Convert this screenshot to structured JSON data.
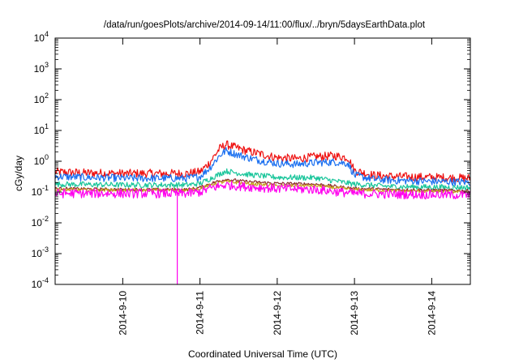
{
  "chart_data": {
    "type": "line",
    "title": "/data/run/goesPlots/archive/2014-09-14/11:00/flux/../bryn/5daysEarthData.plot",
    "xlabel": "Coordinated Universal Time (UTC)",
    "ylabel": "cGy/day",
    "y_scale": "log",
    "ylim": [
      0.0001,
      10000
    ],
    "y_ticks": [
      {
        "value": 0.0001,
        "base": "10",
        "exp": "-4"
      },
      {
        "value": 0.001,
        "base": "10",
        "exp": "-3"
      },
      {
        "value": 0.01,
        "base": "10",
        "exp": "-2"
      },
      {
        "value": 0.1,
        "base": "10",
        "exp": "-1"
      },
      {
        "value": 1,
        "base": "10",
        "exp": "0"
      },
      {
        "value": 10,
        "base": "10",
        "exp": "1"
      },
      {
        "value": 100,
        "base": "10",
        "exp": "2"
      },
      {
        "value": 1000,
        "base": "10",
        "exp": "3"
      },
      {
        "value": 10000,
        "base": "10",
        "exp": "4"
      }
    ],
    "xlim": [
      "2014-09-09 03:00",
      "2014-09-14 12:00"
    ],
    "x_ticks": [
      "2014-9-10",
      "2014-9-11",
      "2014-9-12",
      "2014-9-13",
      "2014-9-14"
    ],
    "grid": false,
    "legend": "none",
    "series": [
      {
        "color": "#ee1111",
        "x": [
          "2014-09-09 03:00",
          "2014-09-09 12:00",
          "2014-09-10 00:00",
          "2014-09-10 12:00",
          "2014-09-10 20:00",
          "2014-09-11 00:00",
          "2014-09-11 03:00",
          "2014-09-11 06:00",
          "2014-09-11 08:00",
          "2014-09-11 12:00",
          "2014-09-11 15:00",
          "2014-09-11 18:00",
          "2014-09-12 00:00",
          "2014-09-12 06:00",
          "2014-09-12 12:00",
          "2014-09-12 18:00",
          "2014-09-12 22:00",
          "2014-09-13 00:00",
          "2014-09-13 06:00",
          "2014-09-13 12:00",
          "2014-09-14 00:00",
          "2014-09-14 12:00"
        ],
        "y": [
          0.45,
          0.42,
          0.4,
          0.4,
          0.4,
          0.45,
          0.9,
          2.5,
          3.5,
          2.6,
          2.1,
          1.8,
          1.3,
          1.2,
          1.4,
          1.5,
          1.3,
          0.5,
          0.35,
          0.32,
          0.3,
          0.28
        ]
      },
      {
        "color": "#1a6ff0",
        "x": [
          "2014-09-09 03:00",
          "2014-09-09 12:00",
          "2014-09-10 00:00",
          "2014-09-10 12:00",
          "2014-09-10 20:00",
          "2014-09-11 00:00",
          "2014-09-11 03:00",
          "2014-09-11 06:00",
          "2014-09-11 08:00",
          "2014-09-11 12:00",
          "2014-09-11 15:00",
          "2014-09-11 18:00",
          "2014-09-12 00:00",
          "2014-09-12 06:00",
          "2014-09-12 12:00",
          "2014-09-12 18:00",
          "2014-09-12 22:00",
          "2014-09-13 00:00",
          "2014-09-13 06:00",
          "2014-09-13 12:00",
          "2014-09-14 00:00",
          "2014-09-14 12:00"
        ],
        "y": [
          0.32,
          0.3,
          0.28,
          0.28,
          0.28,
          0.32,
          0.6,
          1.5,
          2.2,
          1.6,
          1.3,
          1.1,
          0.85,
          0.8,
          0.9,
          0.95,
          0.85,
          0.35,
          0.26,
          0.24,
          0.22,
          0.21
        ]
      },
      {
        "color": "#18c59a",
        "x": [
          "2014-09-09 03:00",
          "2014-09-10 00:00",
          "2014-09-10 20:00",
          "2014-09-11 00:00",
          "2014-09-11 04:00",
          "2014-09-11 08:00",
          "2014-09-11 14:00",
          "2014-09-12 00:00",
          "2014-09-12 12:00",
          "2014-09-13 00:00",
          "2014-09-13 12:00",
          "2014-09-14 12:00"
        ],
        "y": [
          0.18,
          0.17,
          0.17,
          0.19,
          0.3,
          0.48,
          0.38,
          0.3,
          0.29,
          0.18,
          0.15,
          0.14
        ]
      },
      {
        "color": "#8b2a2a",
        "x": [
          "2014-09-09 03:00",
          "2014-09-10 00:00",
          "2014-09-10 20:00",
          "2014-09-11 00:00",
          "2014-09-11 04:00",
          "2014-09-11 08:00",
          "2014-09-11 14:00",
          "2014-09-12 00:00",
          "2014-09-12 12:00",
          "2014-09-13 00:00",
          "2014-09-13 12:00",
          "2014-09-14 12:00"
        ],
        "y": [
          0.13,
          0.12,
          0.12,
          0.14,
          0.2,
          0.26,
          0.22,
          0.19,
          0.18,
          0.13,
          0.12,
          0.11
        ]
      },
      {
        "color": "#c8a020",
        "x": [
          "2014-09-09 03:00",
          "2014-09-10 00:00",
          "2014-09-10 20:00",
          "2014-09-11 00:00",
          "2014-09-11 04:00",
          "2014-09-11 08:00",
          "2014-09-11 14:00",
          "2014-09-12 00:00",
          "2014-09-12 12:00",
          "2014-09-13 00:00",
          "2014-09-13 12:00",
          "2014-09-14 12:00"
        ],
        "y": [
          0.12,
          0.115,
          0.115,
          0.13,
          0.18,
          0.22,
          0.19,
          0.16,
          0.16,
          0.12,
          0.11,
          0.1
        ]
      },
      {
        "color": "#ff00ee",
        "x": [
          "2014-09-09 03:00",
          "2014-09-10 00:00",
          "2014-09-10 20:00",
          "2014-09-11 00:00",
          "2014-09-11 04:00",
          "2014-09-11 08:00",
          "2014-09-11 14:00",
          "2014-09-12 00:00",
          "2014-09-12 12:00",
          "2014-09-13 00:00",
          "2014-09-13 12:00",
          "2014-09-14 12:00"
        ],
        "y": [
          0.09,
          0.09,
          0.09,
          0.1,
          0.14,
          0.17,
          0.15,
          0.13,
          0.12,
          0.09,
          0.085,
          0.08
        ],
        "dropout": {
          "x": "2014-09-10 17:00",
          "y": 0.0001
        }
      }
    ]
  }
}
